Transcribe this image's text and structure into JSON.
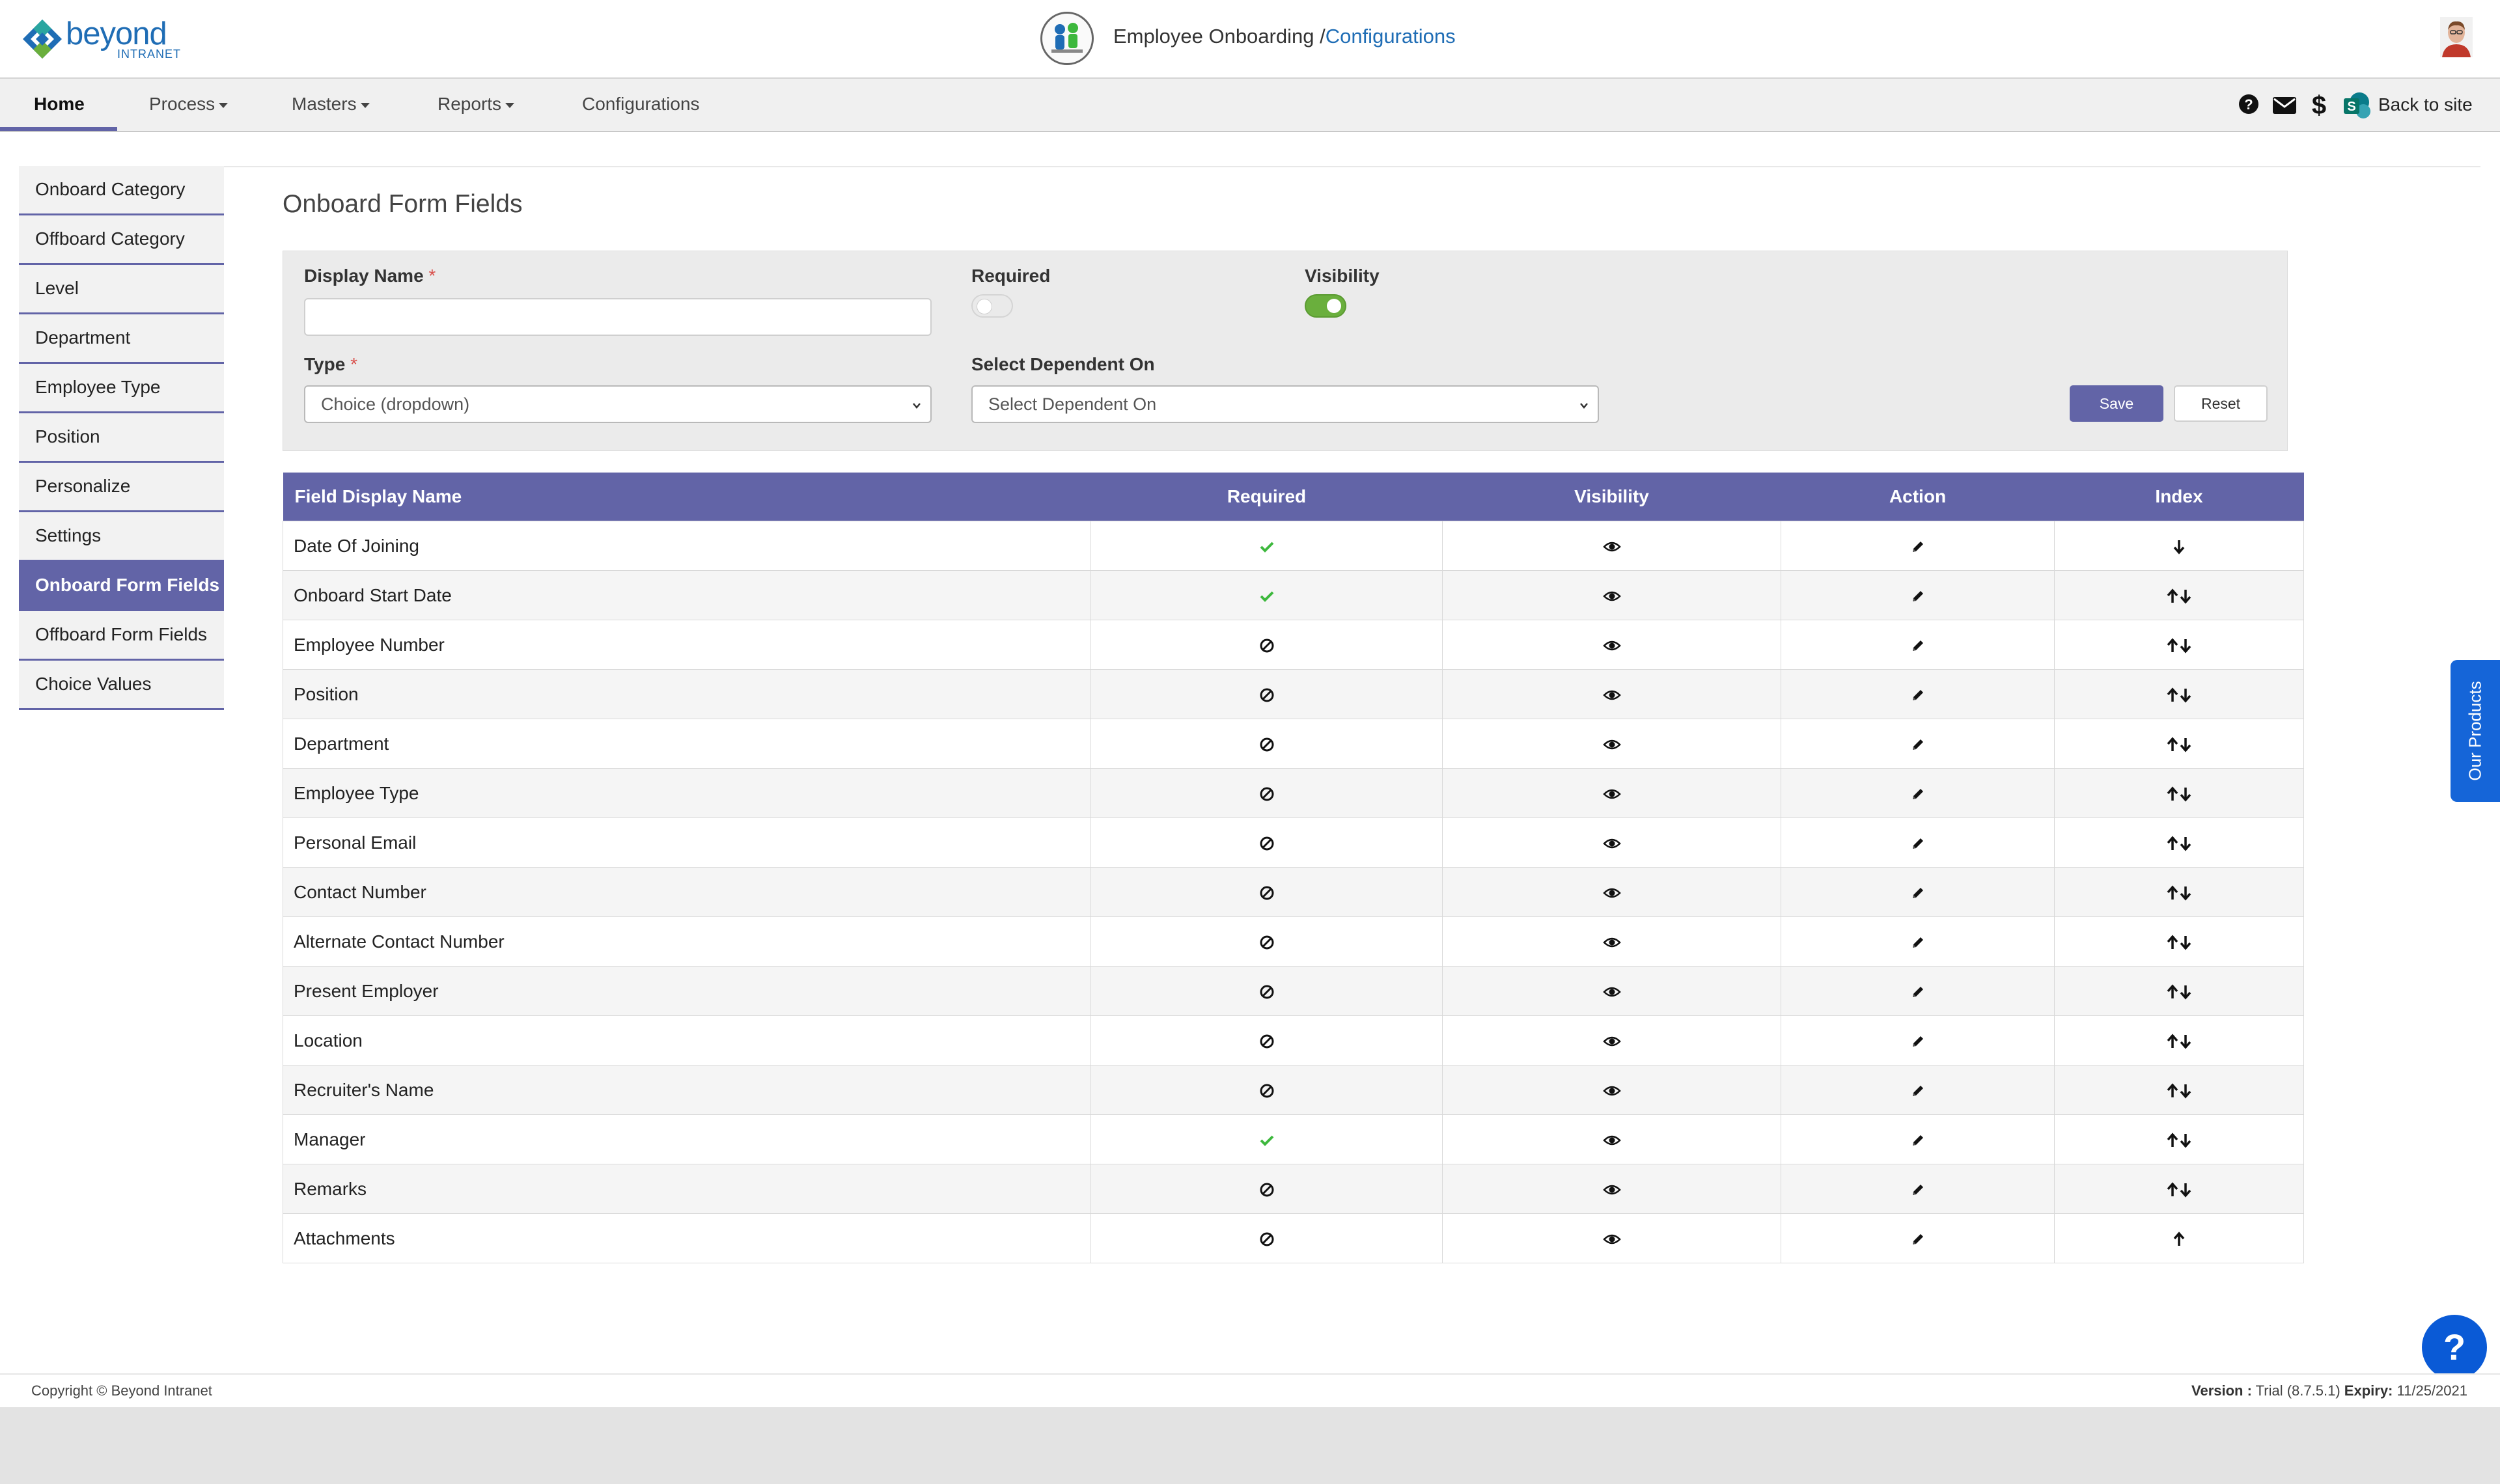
{
  "header": {
    "logo_name": "beyond",
    "logo_sub": "INTRANET",
    "app_title": "Employee Onboarding /",
    "breadcrumb": "Configurations"
  },
  "nav": {
    "items": [
      {
        "label": "Home",
        "active": true
      },
      {
        "label": "Process",
        "dropdown": true
      },
      {
        "label": "Masters",
        "dropdown": true
      },
      {
        "label": "Reports",
        "dropdown": true
      },
      {
        "label": "Configurations"
      }
    ],
    "right_icons": [
      "help-icon",
      "mail-icon",
      "dollar-icon",
      "sharepoint-icon"
    ],
    "back_to_site": "Back to site"
  },
  "sidebar": {
    "items": [
      {
        "label": "Onboard Category"
      },
      {
        "label": "Offboard Category"
      },
      {
        "label": "Level"
      },
      {
        "label": "Department"
      },
      {
        "label": "Employee Type"
      },
      {
        "label": "Position"
      },
      {
        "label": "Personalize"
      },
      {
        "label": "Settings"
      },
      {
        "label": "Onboard Form Fields",
        "active": true
      },
      {
        "label": "Offboard Form Fields"
      },
      {
        "label": "Choice Values"
      }
    ]
  },
  "page": {
    "title": "Onboard Form Fields"
  },
  "form": {
    "display_name_label": "Display Name",
    "display_name_value": "",
    "required_label": "Required",
    "required_on": false,
    "visibility_label": "Visibility",
    "visibility_on": true,
    "type_label": "Type",
    "type_value": "Choice (dropdown)",
    "dependent_label": "Select Dependent On",
    "dependent_value": "Select Dependent On",
    "save_label": "Save",
    "reset_label": "Reset",
    "required_marker": "*"
  },
  "table": {
    "columns": [
      "Field Display Name",
      "Required",
      "Visibility",
      "Action",
      "Index"
    ],
    "rows": [
      {
        "name": "Date Of Joining",
        "required": true,
        "index": "down"
      },
      {
        "name": "Onboard Start Date",
        "required": true,
        "index": "both"
      },
      {
        "name": "Employee Number",
        "required": false,
        "index": "both"
      },
      {
        "name": "Position",
        "required": false,
        "index": "both"
      },
      {
        "name": "Department",
        "required": false,
        "index": "both"
      },
      {
        "name": "Employee Type",
        "required": false,
        "index": "both"
      },
      {
        "name": "Personal Email",
        "required": false,
        "index": "both"
      },
      {
        "name": "Contact Number",
        "required": false,
        "index": "both"
      },
      {
        "name": "Alternate Contact Number",
        "required": false,
        "index": "both"
      },
      {
        "name": "Present Employer",
        "required": false,
        "index": "both"
      },
      {
        "name": "Location",
        "required": false,
        "index": "both"
      },
      {
        "name": "Recruiter's Name",
        "required": false,
        "index": "both"
      },
      {
        "name": "Manager",
        "required": true,
        "index": "both"
      },
      {
        "name": "Remarks",
        "required": false,
        "index": "both"
      },
      {
        "name": "Attachments",
        "required": false,
        "index": "up"
      }
    ]
  },
  "floating": {
    "products_label": "Our Products",
    "help_label": "?"
  },
  "footer": {
    "copyright": "Copyright © Beyond Intranet",
    "version_label": "Version :",
    "version_value": "Trial (8.7.5.1)",
    "expiry_label": "Expiry:",
    "expiry_value": "11/25/2021"
  },
  "colors": {
    "accent": "#6264a7",
    "check": "#3db83d",
    "link": "#1f6db5",
    "toggle_on": "#6aaf3d"
  }
}
